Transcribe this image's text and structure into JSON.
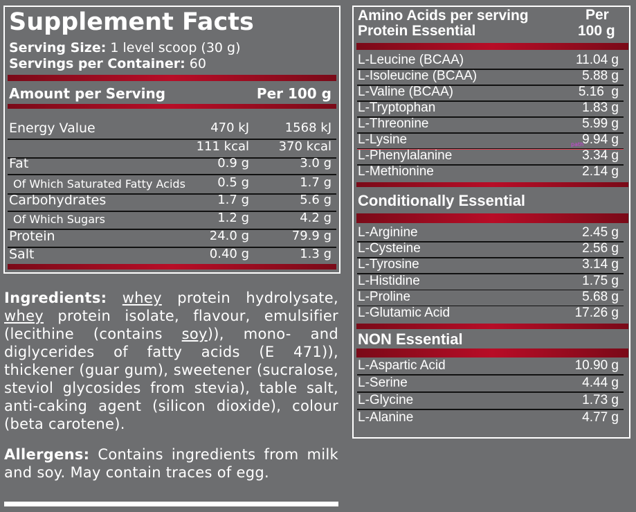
{
  "facts": {
    "title": "Supplement Facts",
    "serving_size_label": "Serving Size:",
    "serving_size_value": "1 level scoop (30 g)",
    "servings_label": "Servings per Container:",
    "servings_value": "60",
    "amount_header": "Amount per Serving",
    "per100_header": "Per 100 g",
    "rows": [
      {
        "name": "Energy Value",
        "serving": "470 kJ",
        "per100": "1568 kJ",
        "small": false
      },
      {
        "name": "",
        "serving": "111 kcal",
        "per100": "370 kcal",
        "small": false
      },
      {
        "name": "Fat",
        "serving": "0.9 g",
        "per100": "3.0 g",
        "small": false
      },
      {
        "name": "Of Which Saturated Fatty Acids",
        "serving": "0.5 g",
        "per100": "1.7 g",
        "small": true
      },
      {
        "name": "Carbohydrates",
        "serving": "1.7 g",
        "per100": "5.6 g",
        "small": false
      },
      {
        "name": "Of Which Sugars",
        "serving": "1.2 g",
        "per100": "4.2 g",
        "small": true
      },
      {
        "name": "Protein",
        "serving": "24.0 g",
        "per100": "79.9 g",
        "small": false
      },
      {
        "name": "Salt",
        "serving": "0.40 g",
        "per100": "1.3 g",
        "small": false
      }
    ]
  },
  "ingredients": {
    "label": "Ingredients:",
    "segments": [
      {
        "text": " ",
        "u": false
      },
      {
        "text": "whey",
        "u": true
      },
      {
        "text": " protein hydrolysate, ",
        "u": false
      },
      {
        "text": "whey",
        "u": true
      },
      {
        "text": " protein isolate, flavour, emulsifier (lecithine (contains ",
        "u": false
      },
      {
        "text": "soy",
        "u": true
      },
      {
        "text": ")), mono- and diglycerides of fatty acids (E 471)), thickener (guar gum), sweetener (sucralose, steviol glycosides from stevia), table salt, anti-caking agent (silicon dioxide), colour (beta carotene).",
        "u": false
      }
    ]
  },
  "allergens": {
    "label": "Allergens:",
    "text": " Contains ingredients from milk and soy. May contain traces of egg."
  },
  "amino": {
    "header_line1": "Amino Acids per serving",
    "header_line2": "Protein Essential",
    "per_line1": "Per",
    "per_line2": "100 g",
    "annotation": "path",
    "essential": [
      {
        "name": "L-Leucine (BCAA)",
        "value": "11.04 g"
      },
      {
        "name": "L-Isoleucine (BCAA)",
        "value": "5.88 g"
      },
      {
        "name": "L-Valine (BCAA)",
        "value": "5.16  g"
      },
      {
        "name": "L-Tryptophan",
        "value": "1.83 g"
      },
      {
        "name": "L-Threonine",
        "value": "5.99 g"
      },
      {
        "name": "L-Lysine",
        "value": "9.94 g"
      },
      {
        "name": "L-Phenylalanine",
        "value": "3.34 g"
      },
      {
        "name": "L-Methionine",
        "value": "2.14 g"
      }
    ],
    "conditional_title": "Conditionally Essential",
    "conditional": [
      {
        "name": "L-Arginine",
        "value": "2.45 g"
      },
      {
        "name": "L-Cysteine",
        "value": "2.56 g"
      },
      {
        "name": "L-Tyrosine",
        "value": "3.14 g"
      },
      {
        "name": "L-Histidine",
        "value": "1.75 g"
      },
      {
        "name": "L-Proline",
        "value": "5.68 g"
      },
      {
        "name": "L-Glutamic Acid",
        "value": "17.26 g"
      }
    ],
    "non_title": "NON Essential",
    "non": [
      {
        "name": "L-Aspartic Acid",
        "value": "10.90 g"
      },
      {
        "name": "L-Serine",
        "value": "4.44 g"
      },
      {
        "name": "L-Glycine",
        "value": "1.73 g"
      },
      {
        "name": "L-Alanine",
        "value": "4.77 g"
      }
    ]
  },
  "colors": {
    "background": "#6d6e70",
    "accent_red": "#b80d27",
    "text": "#ffffff"
  }
}
